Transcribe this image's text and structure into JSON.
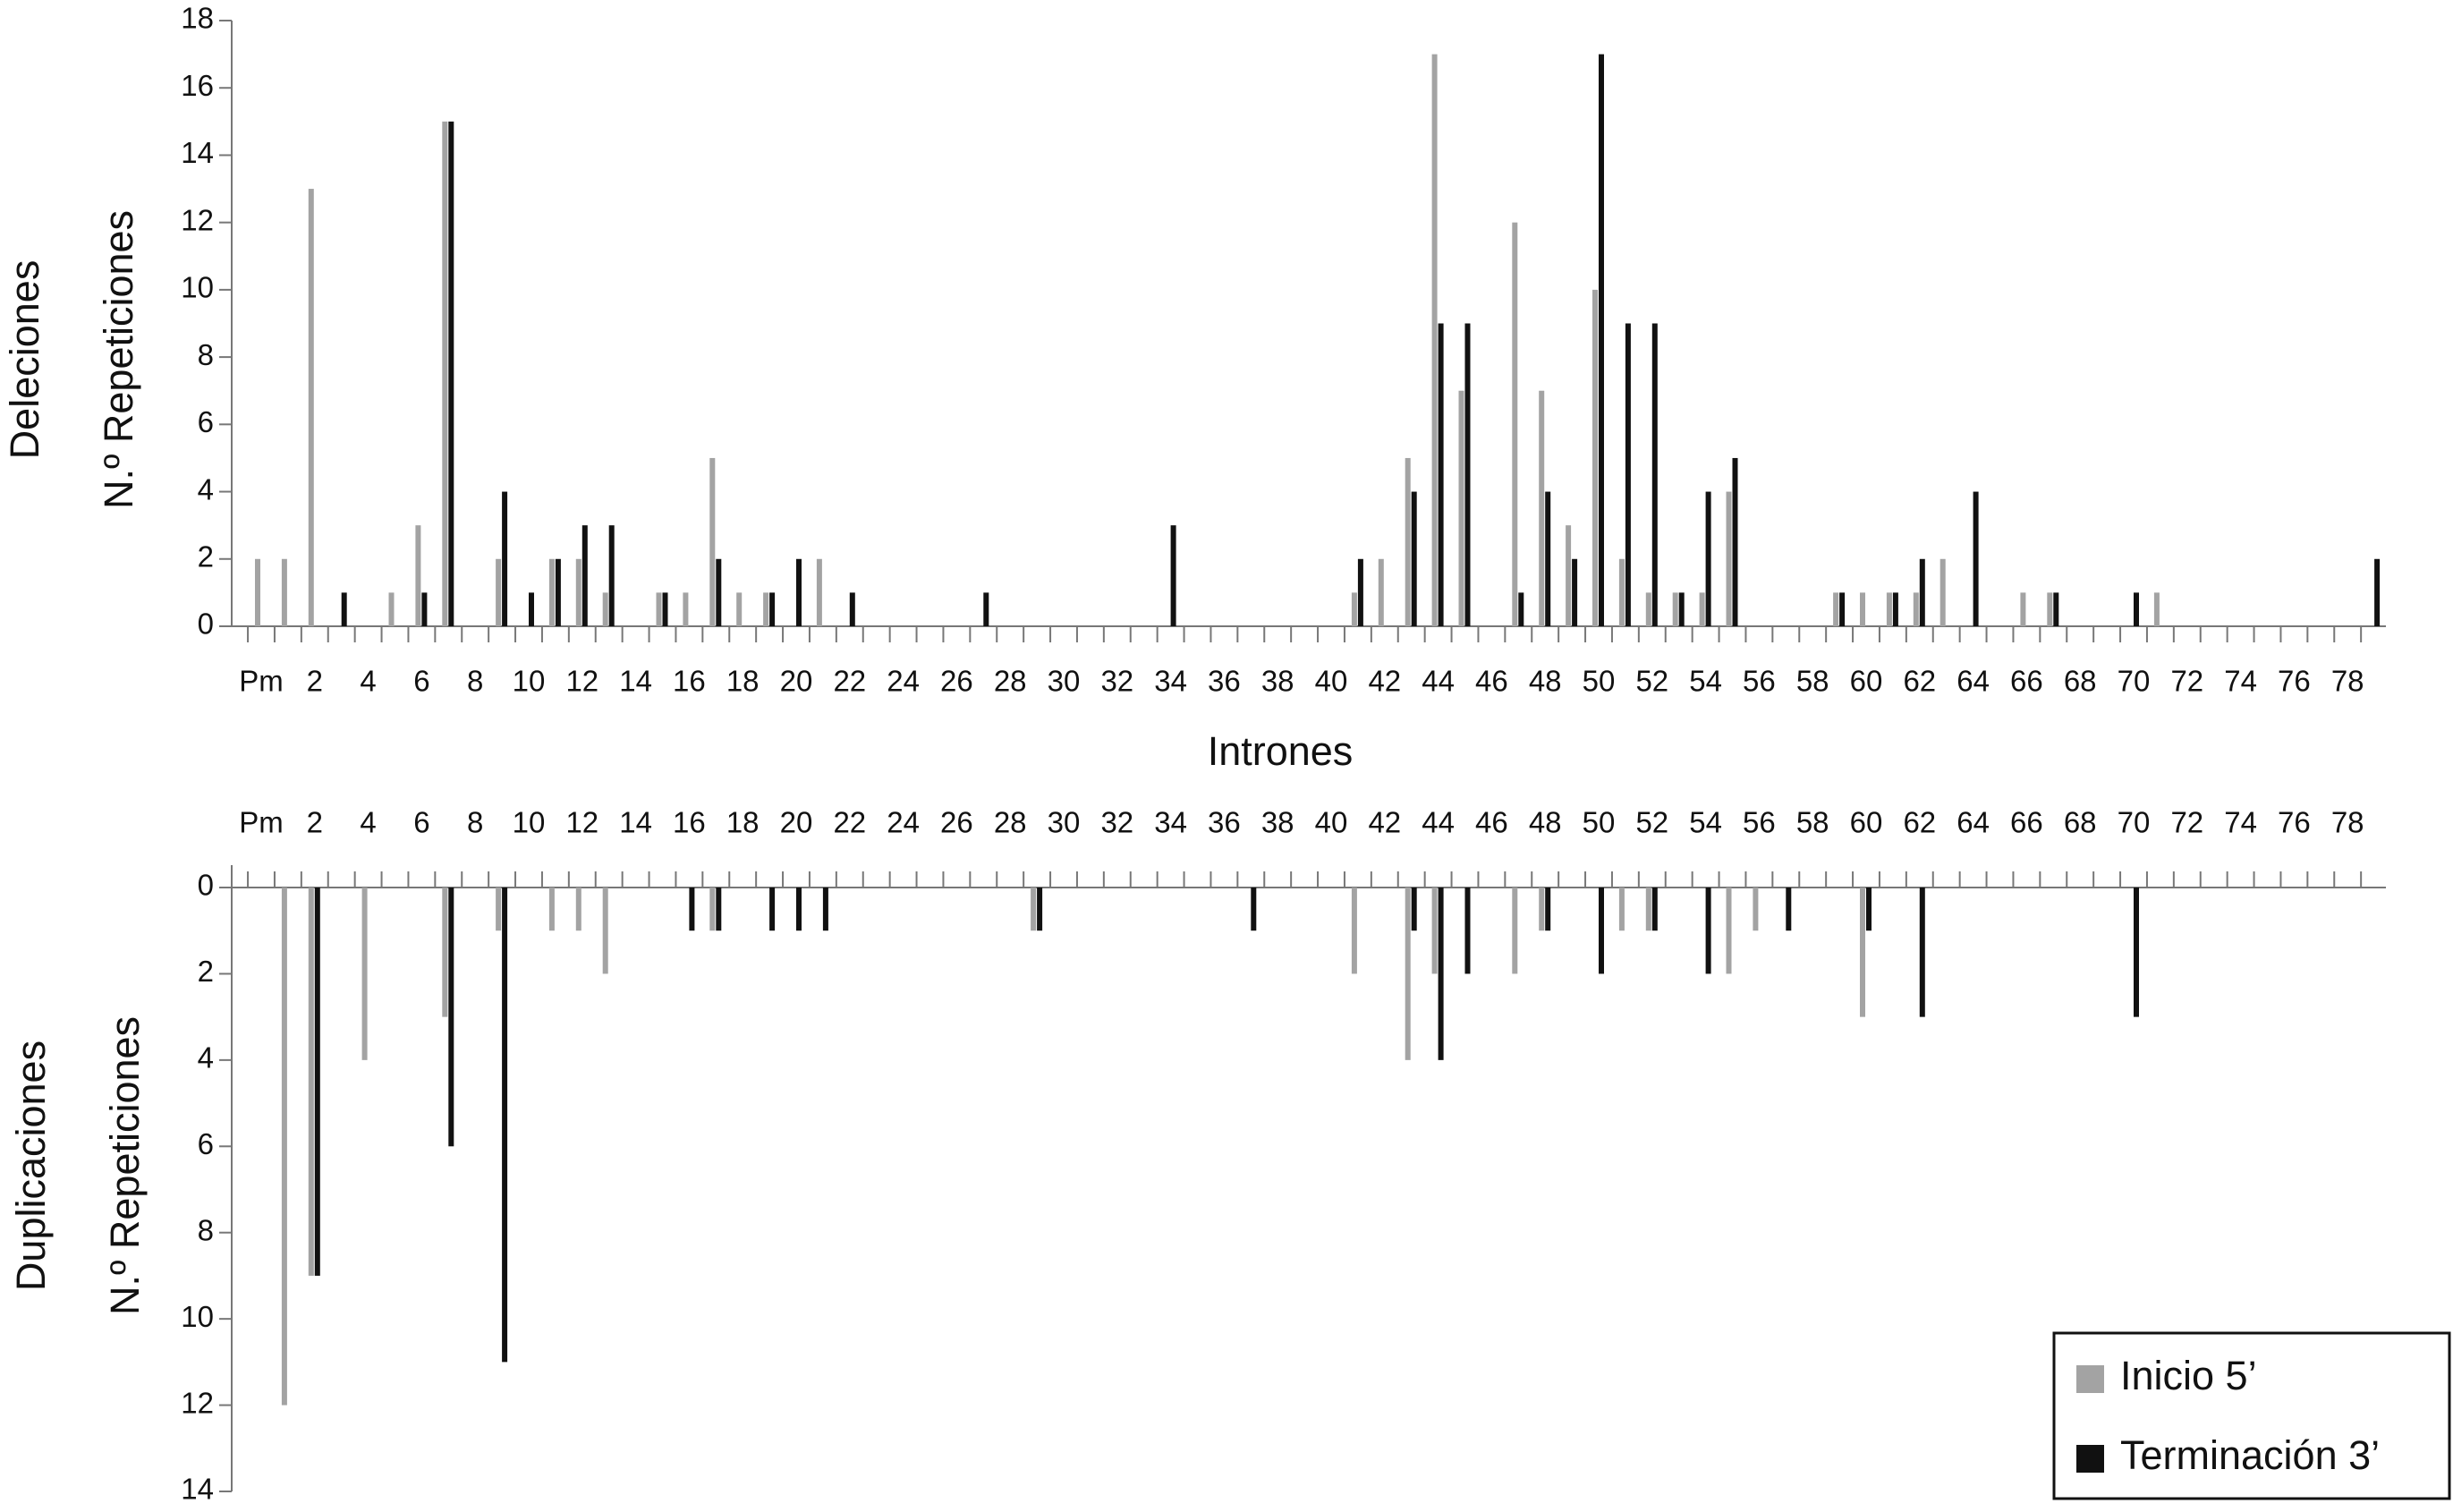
{
  "chart_data": [
    {
      "type": "bar",
      "y_label": "Deleciones",
      "y_label2": "N.º Repeticiones",
      "x_label": "Intrones",
      "categories": [
        "Pm",
        null,
        "2",
        null,
        "4",
        null,
        "6",
        null,
        "8",
        null,
        "10",
        null,
        "12",
        null,
        "14",
        null,
        "16",
        null,
        "18",
        null,
        "20",
        null,
        "22",
        null,
        "24",
        null,
        "26",
        null,
        "28",
        null,
        "30",
        null,
        "32",
        null,
        "34",
        null,
        "36",
        null,
        "38",
        null,
        "40",
        null,
        "42",
        null,
        "44",
        null,
        "46",
        null,
        "48",
        null,
        "50",
        null,
        "52",
        null,
        "54",
        null,
        "56",
        null,
        "58",
        null,
        "60",
        null,
        "62",
        null,
        "64",
        null,
        "66",
        null,
        "68",
        null,
        "70",
        null,
        "72",
        null,
        "74",
        null,
        "76",
        null,
        "78",
        null
      ],
      "series": [
        {
          "color": "#a3a3a3",
          "values": [
            2,
            2,
            13,
            0,
            0,
            1,
            3,
            15,
            0,
            2,
            0,
            2,
            2,
            1,
            0,
            1,
            1,
            5,
            1,
            1,
            0,
            2,
            0,
            0,
            0,
            0,
            0,
            0,
            0,
            0,
            0,
            0,
            0,
            0,
            0,
            0,
            0,
            0,
            0,
            0,
            0,
            1,
            2,
            5,
            17,
            7,
            0,
            12,
            7,
            3,
            10,
            2,
            1,
            1,
            1,
            4,
            0,
            0,
            0,
            1,
            1,
            1,
            1,
            2,
            0,
            0,
            1,
            1,
            0,
            0,
            0,
            1,
            0,
            0,
            0,
            0,
            0,
            0,
            0,
            0
          ]
        },
        {
          "color": "#111111",
          "values": [
            0,
            0,
            0,
            1,
            0,
            0,
            1,
            15,
            0,
            4,
            1,
            2,
            3,
            3,
            0,
            1,
            0,
            2,
            0,
            1,
            2,
            0,
            1,
            0,
            0,
            0,
            0,
            1,
            0,
            0,
            0,
            0,
            0,
            0,
            3,
            0,
            0,
            0,
            0,
            0,
            0,
            2,
            0,
            4,
            9,
            9,
            0,
            1,
            4,
            2,
            17,
            9,
            9,
            1,
            4,
            5,
            0,
            0,
            0,
            1,
            0,
            1,
            2,
            0,
            4,
            0,
            0,
            1,
            0,
            0,
            1,
            0,
            0,
            0,
            0,
            0,
            0,
            0,
            0,
            2
          ]
        }
      ],
      "ylim": [
        0,
        18
      ],
      "yticks": [
        0,
        2,
        4,
        6,
        8,
        10,
        12,
        14,
        16,
        18
      ]
    },
    {
      "type": "bar",
      "y_label": "Duplicaciones",
      "y_label2": "N.º Repeticiones",
      "y_inverted": true,
      "categories": [
        "Pm",
        null,
        "2",
        null,
        "4",
        null,
        "6",
        null,
        "8",
        null,
        "10",
        null,
        "12",
        null,
        "14",
        null,
        "16",
        null,
        "18",
        null,
        "20",
        null,
        "22",
        null,
        "24",
        null,
        "26",
        null,
        "28",
        null,
        "30",
        null,
        "32",
        null,
        "34",
        null,
        "36",
        null,
        "38",
        null,
        "40",
        null,
        "42",
        null,
        "44",
        null,
        "46",
        null,
        "48",
        null,
        "50",
        null,
        "52",
        null,
        "54",
        null,
        "56",
        null,
        "58",
        null,
        "60",
        null,
        "62",
        null,
        "64",
        null,
        "66",
        null,
        "68",
        null,
        "70",
        null,
        "72",
        null,
        "74",
        null,
        "76",
        null,
        "78",
        null
      ],
      "series": [
        {
          "name": "Inicio 5’",
          "color": "#a3a3a3",
          "values": [
            0,
            12,
            9,
            0,
            4,
            0,
            0,
            3,
            0,
            1,
            0,
            1,
            1,
            2,
            0,
            0,
            0,
            1,
            0,
            0,
            0,
            0,
            0,
            0,
            0,
            0,
            0,
            0,
            0,
            1,
            0,
            0,
            0,
            0,
            0,
            0,
            0,
            0,
            0,
            0,
            0,
            2,
            0,
            4,
            2,
            0,
            0,
            2,
            1,
            0,
            0,
            1,
            1,
            0,
            0,
            2,
            1,
            0,
            0,
            0,
            3,
            0,
            0,
            0,
            0,
            0,
            0,
            0,
            0,
            0,
            0,
            0,
            0,
            0,
            0,
            0,
            0,
            0,
            0,
            0
          ]
        },
        {
          "name": "Terminación 3’",
          "color": "#111111",
          "values": [
            0,
            0,
            9,
            0,
            0,
            0,
            0,
            6,
            0,
            11,
            0,
            0,
            0,
            0,
            0,
            0,
            1,
            1,
            0,
            1,
            1,
            1,
            0,
            0,
            0,
            0,
            0,
            0,
            0,
            1,
            0,
            0,
            0,
            0,
            0,
            0,
            0,
            1,
            0,
            0,
            0,
            0,
            0,
            1,
            4,
            2,
            0,
            0,
            1,
            0,
            2,
            0,
            1,
            0,
            2,
            0,
            0,
            1,
            0,
            0,
            1,
            0,
            3,
            0,
            0,
            0,
            0,
            0,
            0,
            0,
            3,
            0,
            0,
            0,
            0,
            0,
            0,
            0,
            0,
            0
          ]
        }
      ],
      "ylim": [
        0,
        14
      ],
      "yticks": [
        0,
        2,
        4,
        6,
        8,
        10,
        12,
        14
      ]
    }
  ]
}
